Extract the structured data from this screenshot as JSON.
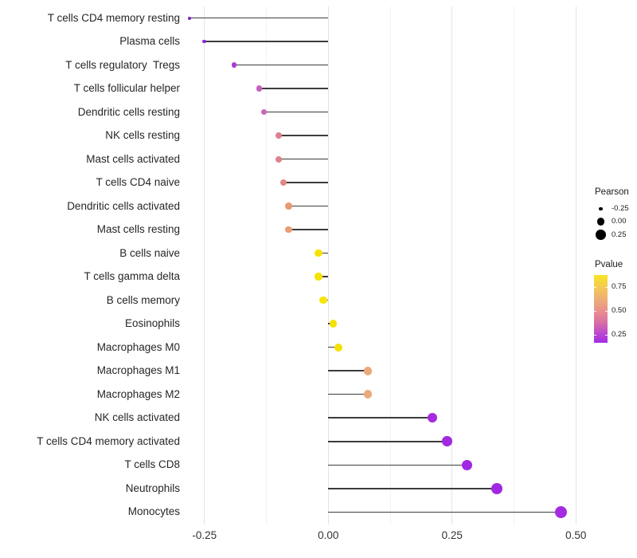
{
  "chart_data": {
    "type": "lollipop",
    "title": "",
    "xlabel": "",
    "ylabel": "",
    "xlim": [
      -0.293,
      0.527
    ],
    "x_major_ticks": [
      -0.25,
      0,
      0.25,
      0.5
    ],
    "x_tick_labels": [
      "-0.25",
      "0.00",
      "0.25",
      "0.50"
    ],
    "x_minor_gridlines": [
      -0.125,
      0.125,
      0.375
    ],
    "grid": "on",
    "legend_position": "right",
    "points": [
      {
        "label": "T cells CD4 memory resting",
        "pearson": -0.28,
        "pvalue_est": 0.05,
        "color": "#7E22CE"
      },
      {
        "label": "Plasma cells",
        "pearson": -0.25,
        "pvalue_est": 0.07,
        "color": "#8A27D8"
      },
      {
        "label": "T cells regulatory  Tregs",
        "pearson": -0.19,
        "pvalue_est": 0.17,
        "color": "#A93BD4"
      },
      {
        "label": "T cells follicular helper",
        "pearson": -0.14,
        "pvalue_est": 0.28,
        "color": "#C95EBE"
      },
      {
        "label": "Dendritic cells resting",
        "pearson": -0.13,
        "pvalue_est": 0.3,
        "color": "#CC66B5"
      },
      {
        "label": "NK cells resting",
        "pearson": -0.1,
        "pvalue_est": 0.4,
        "color": "#DE7E93"
      },
      {
        "label": "Mast cells activated",
        "pearson": -0.1,
        "pvalue_est": 0.41,
        "color": "#DF828B"
      },
      {
        "label": "T cells CD4 naive",
        "pearson": -0.09,
        "pvalue_est": 0.42,
        "color": "#E08787"
      },
      {
        "label": "Dendritic cells activated",
        "pearson": -0.08,
        "pvalue_est": 0.52,
        "color": "#E89B72"
      },
      {
        "label": "Mast cells resting",
        "pearson": -0.08,
        "pvalue_est": 0.53,
        "color": "#EA9D74"
      },
      {
        "label": "B cells naive",
        "pearson": -0.02,
        "pvalue_est": 0.88,
        "color": "#F5E104"
      },
      {
        "label": "T cells gamma delta",
        "pearson": -0.02,
        "pvalue_est": 0.88,
        "color": "#F5E104"
      },
      {
        "label": "B cells memory",
        "pearson": -0.01,
        "pvalue_est": 0.92,
        "color": "#F8E503"
      },
      {
        "label": "Eosinophils",
        "pearson": 0.01,
        "pvalue_est": 0.86,
        "color": "#F4DF04"
      },
      {
        "label": "Macrophages M0",
        "pearson": 0.02,
        "pvalue_est": 0.87,
        "color": "#F5E004"
      },
      {
        "label": "Macrophages M1",
        "pearson": 0.08,
        "pvalue_est": 0.57,
        "color": "#ECA87D"
      },
      {
        "label": "Macrophages M2",
        "pearson": 0.08,
        "pvalue_est": 0.57,
        "color": "#ECAA7B"
      },
      {
        "label": "NK cells activated",
        "pearson": 0.21,
        "pvalue_est": 0.1,
        "color": "#A52BDF"
      },
      {
        "label": "T cells CD4 memory activated",
        "pearson": 0.24,
        "pvalue_est": 0.08,
        "color": "#A229E2"
      },
      {
        "label": "T cells CD8",
        "pearson": 0.28,
        "pvalue_est": 0.07,
        "color": "#A127E3"
      },
      {
        "label": "Neutrophils",
        "pearson": 0.34,
        "pvalue_est": 0.08,
        "color": "#A227E2"
      },
      {
        "label": "Monocytes",
        "pearson": 0.47,
        "pvalue_est": 0.1,
        "color": "#A42BE0"
      }
    ],
    "legend": {
      "size": {
        "title": "Pearson",
        "dot_color": "#000000",
        "entries": [
          {
            "label": "-0.25",
            "value": -0.25
          },
          {
            "label": "0.00",
            "value": 0.0
          },
          {
            "label": "0.25",
            "value": 0.25
          }
        ]
      },
      "color": {
        "title": "Pvalue",
        "tick_labels": [
          "0.75",
          "0.50",
          "0.25"
        ],
        "gradient": [
          {
            "color": "#F9E424",
            "pct": 0
          },
          {
            "color": "#F2C45E",
            "pct": 22
          },
          {
            "color": "#ECA37F",
            "pct": 42
          },
          {
            "color": "#E48694",
            "pct": 58
          },
          {
            "color": "#D66BA8",
            "pct": 72
          },
          {
            "color": "#BB48CF",
            "pct": 86
          },
          {
            "color": "#A22CE5",
            "pct": 100
          }
        ]
      }
    }
  }
}
